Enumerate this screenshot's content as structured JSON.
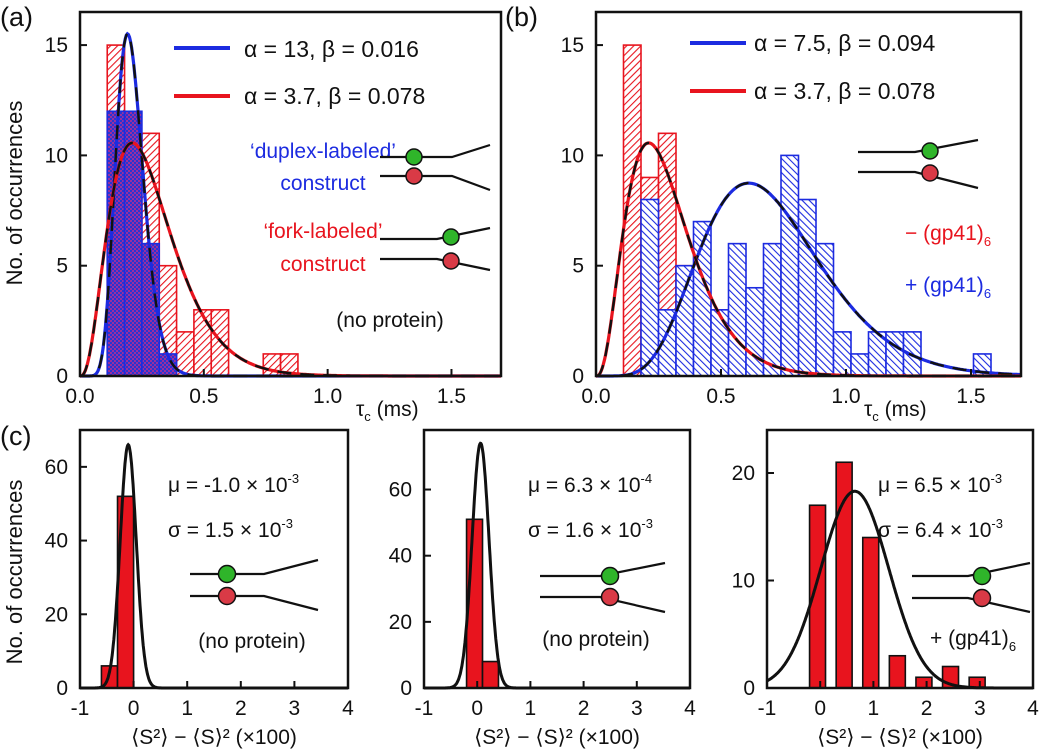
{
  "colors": {
    "red": "#e8141e",
    "blue": "#1c2be0",
    "black": "#111111",
    "green": "#2fb52a",
    "dot_red": "#d93a46"
  },
  "chart_data": [
    {
      "panel": "(a)",
      "type": "bar",
      "ylabel": "No. of occurrences",
      "xlabel_symbol": "τ",
      "xlabel_sub": "c",
      "xlabel_unit": " (ms)",
      "xlim": [
        0,
        1.7
      ],
      "ylim": [
        0,
        16.5
      ],
      "xticks": [
        "0.0",
        "0.5",
        "1.0",
        "1.5"
      ],
      "xtick_values": [
        0,
        0.5,
        1.0,
        1.5
      ],
      "yticks": [
        "0",
        "5",
        "10",
        "15"
      ],
      "ytick_values": [
        0,
        5,
        10,
        15
      ],
      "bin_width": 0.07,
      "series": [
        {
          "name": "fork-labeled",
          "color": "red",
          "pattern": "hatch",
          "bin_starts": [
            0.11,
            0.18,
            0.25,
            0.32,
            0.39,
            0.46,
            0.53,
            0.6,
            0.67,
            0.74,
            0.81
          ],
          "values": [
            15,
            9,
            11,
            5,
            2,
            3,
            3,
            0,
            0,
            1,
            1
          ]
        },
        {
          "name": "duplex-labeled",
          "color": "blue",
          "pattern": "cross",
          "bin_starts": [
            0.11,
            0.18,
            0.25,
            0.32
          ],
          "values": [
            12,
            12,
            6,
            1
          ]
        }
      ],
      "curves": [
        {
          "color": "blue",
          "alpha": 13,
          "beta": 0.016
        },
        {
          "color": "red",
          "alpha": 3.7,
          "beta": 0.078
        }
      ],
      "legend": [
        {
          "color": "blue",
          "label": "α = 13, β = 0.016"
        },
        {
          "color": "red",
          "label": "α = 3.7, β = 0.078"
        }
      ],
      "annotations": {
        "duplex_line1": "‘duplex-labeled’",
        "duplex_line2": "construct",
        "fork_line1": "‘fork-labeled’",
        "fork_line2": "construct",
        "no_protein": "(no protein)"
      }
    },
    {
      "panel": "(b)",
      "type": "bar",
      "xlabel_symbol": "τ",
      "xlabel_sub": "c",
      "xlabel_unit": " (ms)",
      "xlim": [
        0,
        1.7
      ],
      "ylim": [
        0,
        16.5
      ],
      "xticks": [
        "0.0",
        "0.5",
        "1.0",
        "1.5"
      ],
      "xtick_values": [
        0,
        0.5,
        1.0,
        1.5
      ],
      "yticks": [
        "0",
        "5",
        "10",
        "15"
      ],
      "ytick_values": [
        0,
        5,
        10,
        15
      ],
      "bin_width": 0.07,
      "series": [
        {
          "name": "- (gp41)6",
          "color": "red",
          "pattern": "hatch",
          "bin_starts": [
            0.11,
            0.18,
            0.25,
            0.32,
            0.39,
            0.46,
            0.53,
            0.6,
            0.67,
            0.74,
            0.81
          ],
          "values": [
            15,
            9,
            11,
            5,
            2,
            3,
            3,
            0,
            0,
            1,
            1
          ]
        },
        {
          "name": "+ (gp41)6",
          "color": "blue",
          "pattern": "hatch-blue",
          "bin_starts": [
            0.18,
            0.25,
            0.32,
            0.39,
            0.46,
            0.53,
            0.6,
            0.67,
            0.74,
            0.81,
            0.88,
            0.95,
            1.02,
            1.09,
            1.16,
            1.23,
            1.3,
            1.37,
            1.44,
            1.51
          ],
          "values": [
            8,
            3,
            5,
            7,
            3,
            6,
            4,
            6,
            10,
            8,
            6,
            2,
            1,
            2,
            2,
            2,
            0,
            0,
            0,
            1
          ]
        }
      ],
      "curves": [
        {
          "color": "blue",
          "alpha": 7.5,
          "beta": 0.094
        },
        {
          "color": "red",
          "alpha": 3.7,
          "beta": 0.078
        }
      ],
      "legend": [
        {
          "color": "blue",
          "label": "α = 7.5, β = 0.094"
        },
        {
          "color": "red",
          "label": "α = 3.7, β = 0.078"
        }
      ],
      "annotations": {
        "minus_prefix": "− (gp41)",
        "plus_prefix": "+ (gp41)",
        "sub": "6"
      }
    },
    {
      "panel": "(c)",
      "type": "bar",
      "ylabel": "No. of occurrences",
      "xlabel": "⟨S²⟩ − ⟨S⟩² (×100)",
      "xlim": [
        -1,
        4
      ],
      "ylim": [
        0,
        70
      ],
      "xticks": [
        "-1",
        "0",
        "1",
        "2",
        "3",
        "4"
      ],
      "xtick_values": [
        -1,
        0,
        1,
        2,
        3,
        4
      ],
      "yticks": [
        "0",
        "20",
        "40",
        "60"
      ],
      "ytick_values": [
        0,
        20,
        40,
        60
      ],
      "bin_width": 0.3,
      "bin_starts": [
        -0.6,
        -0.3
      ],
      "values": [
        6,
        52
      ],
      "curve": {
        "mu_x100": -0.1,
        "sigma_x100": 0.15,
        "peak": 66
      },
      "stats_mu": "μ = -1.0 × 10",
      "stats_mu_exp": "-3",
      "stats_sigma": "σ = 1.5 × 10",
      "stats_sigma_exp": "-3",
      "note": "(no protein)"
    },
    {
      "panel": "(c2)",
      "type": "bar",
      "xlabel": "⟨S²⟩ − ⟨S⟩² (×100)",
      "xlim": [
        -1,
        4
      ],
      "ylim": [
        0,
        78
      ],
      "xticks": [
        "-1",
        "0",
        "1",
        "2",
        "3",
        "4"
      ],
      "xtick_values": [
        -1,
        0,
        1,
        2,
        3,
        4
      ],
      "yticks": [
        "0",
        "20",
        "40",
        "60"
      ],
      "ytick_values": [
        0,
        20,
        40,
        60
      ],
      "bin_width": 0.3,
      "bin_starts": [
        -0.2,
        0.1
      ],
      "values": [
        51,
        8
      ],
      "curve": {
        "mu_x100": 0.063,
        "sigma_x100": 0.16,
        "peak": 74
      },
      "stats_mu": "μ = 6.3 × 10",
      "stats_mu_exp": "-4",
      "stats_sigma": "σ = 1.6 × 10",
      "stats_sigma_exp": "-3",
      "note": "(no protein)"
    },
    {
      "panel": "(c3)",
      "type": "bar",
      "xlabel": "⟨S²⟩ − ⟨S⟩² (×100)",
      "xlim": [
        -1,
        4
      ],
      "ylim": [
        0,
        24
      ],
      "xticks": [
        "-1",
        "0",
        "1",
        "2",
        "3",
        "4"
      ],
      "xtick_values": [
        -1,
        0,
        1,
        2,
        3,
        4
      ],
      "yticks": [
        "0",
        "10",
        "20"
      ],
      "ytick_values": [
        0,
        10,
        20
      ],
      "bin_width": 0.3,
      "bin_starts": [
        -0.2,
        0.3,
        0.8,
        1.3,
        1.8,
        2.3,
        2.8
      ],
      "values": [
        17,
        21,
        14,
        3,
        1,
        2,
        1
      ],
      "curve": {
        "mu_x100": 0.65,
        "sigma_x100": 0.64,
        "peak": 18.3
      },
      "stats_mu": "μ = 6.5 × 10",
      "stats_mu_exp": "-3",
      "stats_sigma": "σ = 6.4 × 10",
      "stats_sigma_exp": "-3",
      "note_prefix": "+ (gp41)",
      "note_sub": "6"
    }
  ],
  "labels": {
    "panel_a": "(a)",
    "panel_b": "(b)",
    "panel_c": "(c)"
  }
}
